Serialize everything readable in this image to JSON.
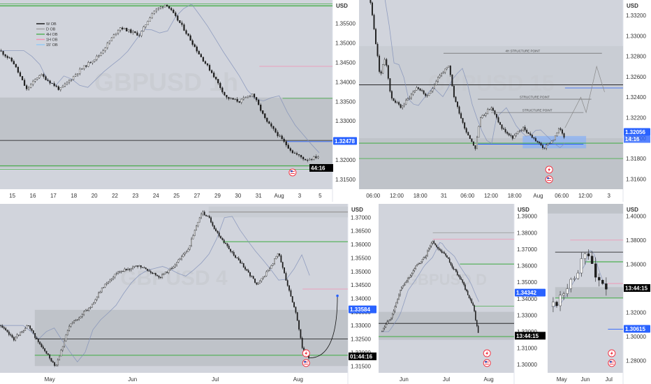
{
  "currency": "USD",
  "colors": {
    "bg": "#ffffff",
    "plot": "#d1d4dc",
    "zone": "#bcbfc6",
    "candle": "#1e1e1e",
    "green": "#4caf50",
    "blue": "#2962ff",
    "red": "#f23645",
    "pink": "#f48fb1",
    "ma": "#7f8fb8",
    "border": "#ffffff"
  },
  "chart_data": [
    {
      "id": "p1",
      "type": "candlestick",
      "watermark": "GBPUSD 1h",
      "price_axis": [
        "1.35500",
        "1.35000",
        "1.34500",
        "1.34000",
        "1.33500",
        "1.33000",
        "1.32500",
        "1.32000",
        "1.31500"
      ],
      "ylim": [
        1.3125,
        1.361
      ],
      "time_axis": [
        "15",
        "16",
        "17",
        "18",
        "20",
        "22",
        "23",
        "24",
        "25",
        "27",
        "29",
        "30",
        "31",
        "Aug",
        "3",
        "5"
      ],
      "current_price": "1.32478",
      "countdown": "44:16",
      "legend": [
        {
          "label": "W OB",
          "color": "#111111"
        },
        {
          "label": "D OB",
          "color": "#9e9e9e"
        },
        {
          "label": "4H OB",
          "color": "#4caf50"
        },
        {
          "label": "1H OB",
          "color": "#f48fb1"
        },
        {
          "label": "15' OB",
          "color": "#90caf9"
        }
      ],
      "anchors": [
        [
          0,
          1.348
        ],
        [
          0.04,
          1.345
        ],
        [
          0.08,
          1.338
        ],
        [
          0.12,
          1.342
        ],
        [
          0.18,
          1.338
        ],
        [
          0.24,
          1.343
        ],
        [
          0.3,
          1.347
        ],
        [
          0.36,
          1.354
        ],
        [
          0.42,
          1.352
        ],
        [
          0.46,
          1.358
        ],
        [
          0.5,
          1.36
        ],
        [
          0.55,
          1.354
        ],
        [
          0.6,
          1.347
        ],
        [
          0.64,
          1.342
        ],
        [
          0.68,
          1.336
        ],
        [
          0.72,
          1.335
        ],
        [
          0.76,
          1.337
        ],
        [
          0.8,
          1.33
        ],
        [
          0.84,
          1.326
        ],
        [
          0.88,
          1.322
        ],
        [
          0.92,
          1.32
        ],
        [
          0.96,
          1.321
        ]
      ],
      "levels": [
        {
          "y": 1.3595,
          "color": "#4caf50",
          "w": 1.5,
          "x0": 0,
          "x1": 1
        },
        {
          "y": 1.36,
          "color": "#4caf50",
          "w": 0.8,
          "x0": 0,
          "x1": 1
        },
        {
          "y": 1.344,
          "color": "#f48fb1",
          "w": 0.8,
          "x0": 0.78,
          "x1": 1
        },
        {
          "y": 1.3358,
          "color": "#4caf50",
          "w": 0.8,
          "x0": 0.85,
          "x1": 1
        },
        {
          "y": 1.325,
          "color": "#111111",
          "w": 0.8,
          "x0": 0,
          "x1": 1
        },
        {
          "y": 1.3247,
          "color": "#2962ff",
          "w": 0.8,
          "x0": 0.86,
          "x1": 1
        },
        {
          "y": 1.3185,
          "color": "#4caf50",
          "w": 1.2,
          "x0": 0,
          "x1": 1
        },
        {
          "y": 1.3176,
          "color": "#4caf50",
          "w": 0.8,
          "x0": 0,
          "x1": 1
        }
      ],
      "zones": [
        {
          "y0": 1.336,
          "y1": 1.318,
          "x0": 0,
          "x1": 1,
          "color": "#bcbfc6"
        }
      ]
    },
    {
      "id": "p2",
      "type": "candlestick",
      "watermark": "GBPUSD 15",
      "price_axis": [
        "1.33200",
        "1.33000",
        "1.32800",
        "1.32600",
        "1.32400",
        "1.32200",
        "1.32000",
        "1.31800",
        "1.31600"
      ],
      "ylim": [
        1.315,
        1.3335
      ],
      "time_axis": [
        "06:00",
        "12:00",
        "18:00",
        "31",
        "06:00",
        "12:00",
        "18:00",
        "Aug",
        "06:00",
        "12:00",
        "3"
      ],
      "current_price": "1.32056",
      "countdown": "14:16",
      "annotations": [
        {
          "label": "4H STRUCTURE POINT",
          "y": 1.3283,
          "x0": 0.32,
          "x1": 0.92
        },
        {
          "label": "STRUCTURE POINT",
          "y": 1.3238,
          "x0": 0.45,
          "x1": 0.88
        },
        {
          "label": "STRUCTURE POINT",
          "y": 1.3225,
          "x0": 0.5,
          "x1": 0.85
        }
      ],
      "anchors": [
        [
          0.04,
          1.334
        ],
        [
          0.08,
          1.326
        ],
        [
          0.1,
          1.328
        ],
        [
          0.12,
          1.324
        ],
        [
          0.16,
          1.323
        ],
        [
          0.22,
          1.325
        ],
        [
          0.26,
          1.324
        ],
        [
          0.3,
          1.326
        ],
        [
          0.34,
          1.327
        ],
        [
          0.36,
          1.324
        ],
        [
          0.4,
          1.321
        ],
        [
          0.44,
          1.319
        ],
        [
          0.46,
          1.322
        ],
        [
          0.5,
          1.323
        ],
        [
          0.54,
          1.321
        ],
        [
          0.58,
          1.32
        ],
        [
          0.62,
          1.321
        ],
        [
          0.66,
          1.32
        ],
        [
          0.7,
          1.319
        ],
        [
          0.74,
          1.32
        ],
        [
          0.76,
          1.321
        ],
        [
          0.78,
          1.32
        ]
      ],
      "levels": [
        {
          "y": 1.3252,
          "color": "#111111",
          "w": 0.8,
          "x0": 0,
          "x1": 1
        },
        {
          "y": 1.3249,
          "color": "#2962ff",
          "w": 0.8,
          "x0": 0.78,
          "x1": 1
        },
        {
          "y": 1.3195,
          "color": "#4caf50",
          "w": 1.2,
          "x0": 0,
          "x1": 1
        },
        {
          "y": 1.318,
          "color": "#4caf50",
          "w": 0.8,
          "x0": 0,
          "x1": 1
        },
        {
          "y": 1.3194,
          "color": "#2962ff",
          "w": 1,
          "x0": 0.45,
          "x1": 0.85
        }
      ],
      "zones": [
        {
          "y0": 1.32,
          "y1": 1.315,
          "x0": 0,
          "x1": 1,
          "color": "#bcbfc6"
        },
        {
          "y0": 1.329,
          "y1": 1.32,
          "x0": 0,
          "x1": 1,
          "color": "#c8cbd2"
        },
        {
          "y0": 1.3202,
          "y1": 1.319,
          "x0": 0.62,
          "x1": 0.86,
          "color": "#90b4f0"
        }
      ]
    },
    {
      "id": "p3",
      "type": "candlestick",
      "watermark": "GBPUSD 4",
      "price_axis": [
        "1.37000",
        "1.36500",
        "1.36000",
        "1.35500",
        "1.35000",
        "1.34500",
        "1.34000",
        "1.33500",
        "1.33000",
        "1.32500",
        "1.32000",
        "1.31500"
      ],
      "ylim": [
        1.3125,
        1.375
      ],
      "time_axis": [
        "May",
        "Jun",
        "Jul",
        "Aug"
      ],
      "current_price": "1.33584",
      "countdown": "01:44:16",
      "anchors": [
        [
          0,
          1.33
        ],
        [
          0.04,
          1.325
        ],
        [
          0.08,
          1.33
        ],
        [
          0.12,
          1.322
        ],
        [
          0.16,
          1.315
        ],
        [
          0.2,
          1.33
        ],
        [
          0.26,
          1.337
        ],
        [
          0.3,
          1.345
        ],
        [
          0.34,
          1.35
        ],
        [
          0.4,
          1.352
        ],
        [
          0.46,
          1.348
        ],
        [
          0.5,
          1.352
        ],
        [
          0.54,
          1.358
        ],
        [
          0.58,
          1.372
        ],
        [
          0.6,
          1.37
        ],
        [
          0.62,
          1.365
        ],
        [
          0.66,
          1.358
        ],
        [
          0.7,
          1.352
        ],
        [
          0.74,
          1.345
        ],
        [
          0.78,
          1.352
        ],
        [
          0.8,
          1.357
        ],
        [
          0.82,
          1.348
        ],
        [
          0.85,
          1.335
        ],
        [
          0.87,
          1.321
        ],
        [
          0.89,
          1.318
        ]
      ],
      "levels": [
        {
          "y": 1.372,
          "color": "#9e9e9e",
          "w": 1.4,
          "x0": 0.6,
          "x1": 1
        },
        {
          "y": 1.361,
          "color": "#4caf50",
          "w": 1.2,
          "x0": 0.64,
          "x1": 1
        },
        {
          "y": 1.3435,
          "color": "#f48fb1",
          "w": 0.8,
          "x0": 0.87,
          "x1": 1
        },
        {
          "y": 1.325,
          "color": "#111111",
          "w": 0.8,
          "x0": 0.1,
          "x1": 1
        },
        {
          "y": 1.319,
          "color": "#4caf50",
          "w": 1.2,
          "x0": 0.1,
          "x1": 1
        }
      ],
      "zones": [
        {
          "y0": 1.3358,
          "y1": 1.315,
          "x0": 0.1,
          "x1": 1,
          "color": "#bcbfc6"
        },
        {
          "y0": 1.374,
          "y1": 1.37,
          "x0": 0.6,
          "x1": 1,
          "color": "#c8cbd2"
        }
      ]
    },
    {
      "id": "p4",
      "type": "candlestick",
      "watermark": "GBPUSD D",
      "price_axis": [
        "1.39000",
        "1.38000",
        "1.37000",
        "1.36000",
        "1.35000",
        "1.34000",
        "1.33000",
        "1.32000",
        "1.31000",
        "1.30000"
      ],
      "ylim": [
        1.295,
        1.3975
      ],
      "time_axis": [
        "Jun",
        "Jul",
        "Aug"
      ],
      "current_price": "1.34342",
      "countdown": "13:44:15",
      "anchors": [
        [
          0.02,
          1.32
        ],
        [
          0.06,
          1.325
        ],
        [
          0.1,
          1.33
        ],
        [
          0.16,
          1.345
        ],
        [
          0.22,
          1.352
        ],
        [
          0.28,
          1.36
        ],
        [
          0.34,
          1.365
        ],
        [
          0.4,
          1.375
        ],
        [
          0.44,
          1.37
        ],
        [
          0.5,
          1.366
        ],
        [
          0.54,
          1.36
        ],
        [
          0.58,
          1.355
        ],
        [
          0.62,
          1.35
        ],
        [
          0.66,
          1.342
        ],
        [
          0.7,
          1.335
        ],
        [
          0.72,
          1.325
        ],
        [
          0.74,
          1.318
        ]
      ],
      "levels": [
        {
          "y": 1.38,
          "color": "#9e9e9e",
          "w": 0.8,
          "x0": 0.4,
          "x1": 1
        },
        {
          "y": 1.376,
          "color": "#f48fb1",
          "w": 0.8,
          "x0": 0.4,
          "x1": 1
        },
        {
          "y": 1.361,
          "color": "#4caf50",
          "w": 1.2,
          "x0": 0.6,
          "x1": 1
        },
        {
          "y": 1.3355,
          "color": "#4caf50",
          "w": 0.8,
          "x0": 0.7,
          "x1": 1
        },
        {
          "y": 1.325,
          "color": "#111111",
          "w": 0.8,
          "x0": 0,
          "x1": 1
        },
        {
          "y": 1.317,
          "color": "#4caf50",
          "w": 1.2,
          "x0": 0,
          "x1": 1
        }
      ],
      "zones": [
        {
          "y0": 1.332,
          "y1": 1.315,
          "x0": 0,
          "x1": 1,
          "color": "#bcbfc6"
        }
      ]
    },
    {
      "id": "p5",
      "type": "candlestick",
      "watermark": "",
      "price_axis": [
        "1.40000",
        "1.38000",
        "1.36000",
        "1.34000",
        "1.32000",
        "1.30000",
        "1.28000"
      ],
      "ylim": [
        1.27,
        1.41
      ],
      "time_axis": [
        "May",
        "Jun",
        "Jul"
      ],
      "current_price": "1.30615",
      "countdown": "13:44:15",
      "anchors": [
        [
          0.05,
          1.325
        ],
        [
          0.12,
          1.328
        ],
        [
          0.2,
          1.335
        ],
        [
          0.28,
          1.345
        ],
        [
          0.36,
          1.352
        ],
        [
          0.44,
          1.36
        ],
        [
          0.5,
          1.372
        ],
        [
          0.56,
          1.368
        ],
        [
          0.62,
          1.355
        ],
        [
          0.68,
          1.345
        ],
        [
          0.74,
          1.34
        ],
        [
          0.8,
          1.334
        ]
      ],
      "levels": [
        {
          "y": 1.38,
          "color": "#f48fb1",
          "w": 0.8,
          "x0": 0.3,
          "x1": 1
        },
        {
          "y": 1.37,
          "color": "#111111",
          "w": 0.8,
          "x0": 0.1,
          "x1": 1
        },
        {
          "y": 1.362,
          "color": "#4caf50",
          "w": 1.2,
          "x0": 0.5,
          "x1": 1
        },
        {
          "y": 1.344,
          "color": "#f48fb1",
          "w": 0.8,
          "x0": 0.8,
          "x1": 1
        },
        {
          "y": 1.332,
          "color": "#4caf50",
          "w": 1.2,
          "x0": 0.1,
          "x1": 1
        },
        {
          "y": 1.3062,
          "color": "#2962ff",
          "w": 0.8,
          "x0": 0.8,
          "x1": 1
        }
      ],
      "zones": [
        {
          "y0": 1.341,
          "y1": 1.332,
          "x0": 0.1,
          "x1": 1,
          "color": "#bcbfc6"
        },
        {
          "y0": 1.41,
          "y1": 1.402,
          "x0": 0,
          "x1": 1,
          "color": "#bcbfc6"
        }
      ]
    }
  ]
}
